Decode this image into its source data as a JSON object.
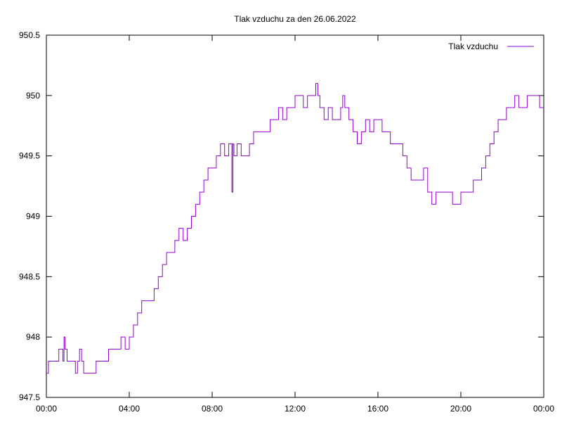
{
  "chart_data": {
    "type": "line",
    "title": "Tlak vzduchu za den 26.06.2022",
    "xlabel": "",
    "ylabel": "",
    "x_tick_labels": [
      "00:00",
      "04:00",
      "08:00",
      "12:00",
      "16:00",
      "20:00",
      "00:00"
    ],
    "x_tick_hours": [
      0,
      4,
      8,
      12,
      16,
      20,
      24
    ],
    "y_tick_labels": [
      "947.5",
      "948",
      "948.5",
      "949",
      "949.5",
      "950",
      "950.5"
    ],
    "y_tick_values": [
      947.5,
      948,
      948.5,
      949,
      949.5,
      950,
      950.5
    ],
    "xlim_hours": [
      0,
      24
    ],
    "ylim": [
      947.5,
      950.5
    ],
    "grid": false,
    "legend_position": "top-right",
    "series": [
      {
        "name": "Tlak vzduchu",
        "color": "#9400d3",
        "x_hours": [
          0.0,
          0.1,
          0.3,
          0.5,
          0.6,
          0.7,
          0.8,
          0.85,
          0.9,
          1.0,
          1.2,
          1.4,
          1.5,
          1.6,
          1.7,
          1.8,
          2.0,
          2.2,
          2.4,
          2.6,
          2.8,
          3.0,
          3.2,
          3.4,
          3.6,
          3.8,
          4.0,
          4.2,
          4.4,
          4.6,
          4.8,
          5.0,
          5.2,
          5.4,
          5.6,
          5.8,
          6.0,
          6.2,
          6.4,
          6.6,
          6.8,
          7.0,
          7.2,
          7.4,
          7.6,
          7.8,
          8.0,
          8.2,
          8.4,
          8.6,
          8.8,
          8.95,
          9.0,
          9.05,
          9.2,
          9.4,
          9.6,
          9.8,
          10.0,
          10.2,
          10.4,
          10.6,
          10.8,
          11.0,
          11.2,
          11.4,
          11.6,
          11.8,
          12.0,
          12.2,
          12.4,
          12.6,
          12.8,
          13.0,
          13.1,
          13.2,
          13.4,
          13.6,
          13.8,
          14.0,
          14.2,
          14.3,
          14.4,
          14.6,
          14.8,
          15.0,
          15.2,
          15.4,
          15.6,
          15.8,
          16.0,
          16.2,
          16.4,
          16.6,
          16.8,
          17.0,
          17.2,
          17.4,
          17.6,
          17.8,
          18.0,
          18.2,
          18.4,
          18.6,
          18.8,
          19.0,
          19.2,
          19.4,
          19.6,
          19.8,
          20.0,
          20.2,
          20.4,
          20.6,
          20.8,
          21.0,
          21.2,
          21.4,
          21.6,
          21.8,
          22.0,
          22.2,
          22.4,
          22.6,
          22.8,
          23.0,
          23.2,
          23.4,
          23.6,
          23.8,
          24.0
        ],
        "values": [
          947.7,
          947.8,
          947.8,
          947.8,
          947.9,
          947.9,
          947.8,
          948.0,
          947.9,
          947.8,
          947.8,
          947.7,
          947.8,
          947.9,
          947.8,
          947.7,
          947.7,
          947.7,
          947.8,
          947.8,
          947.8,
          947.9,
          947.9,
          947.9,
          948.0,
          947.9,
          948.0,
          948.1,
          948.2,
          948.3,
          948.3,
          948.3,
          948.4,
          948.5,
          948.6,
          948.7,
          948.7,
          948.8,
          948.9,
          948.8,
          948.9,
          949.0,
          949.1,
          949.2,
          949.3,
          949.4,
          949.4,
          949.5,
          949.6,
          949.5,
          949.6,
          949.2,
          949.6,
          949.5,
          949.6,
          949.5,
          949.5,
          949.6,
          949.7,
          949.7,
          949.7,
          949.7,
          949.8,
          949.8,
          949.9,
          949.8,
          949.9,
          949.9,
          950.0,
          950.0,
          949.9,
          950.0,
          950.0,
          950.1,
          950.0,
          949.9,
          949.8,
          949.9,
          949.8,
          949.8,
          949.9,
          950.0,
          949.9,
          949.8,
          949.7,
          949.6,
          949.7,
          949.8,
          949.7,
          949.8,
          949.8,
          949.7,
          949.7,
          949.6,
          949.6,
          949.6,
          949.5,
          949.4,
          949.3,
          949.3,
          949.3,
          949.4,
          949.2,
          949.1,
          949.2,
          949.2,
          949.2,
          949.2,
          949.1,
          949.1,
          949.2,
          949.2,
          949.2,
          949.3,
          949.3,
          949.4,
          949.5,
          949.6,
          949.7,
          949.8,
          949.8,
          949.9,
          949.9,
          950.0,
          949.9,
          949.9,
          950.0,
          950.0,
          950.0,
          949.9,
          949.9
        ]
      }
    ]
  }
}
